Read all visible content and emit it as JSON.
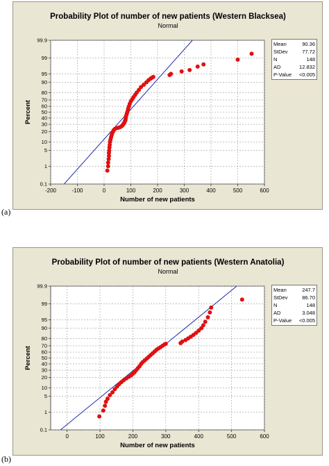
{
  "chart_data": [
    {
      "type": "scatter",
      "title": "Probability Plot of number of new patients (Western Blacksea)",
      "subtitle": "Normal",
      "xlabel": "Number of new patients",
      "ylabel": "Percent",
      "panel_label": "(a)",
      "xlim": [
        -200,
        600
      ],
      "x_ticks": [
        "-200",
        "-100",
        "0",
        "100",
        "200",
        "300",
        "400",
        "500",
        "600"
      ],
      "y_ticks": [
        "0.1",
        "1",
        "5",
        "10",
        "20",
        "30",
        "40",
        "50",
        "60",
        "70",
        "80",
        "90",
        "95",
        "99",
        "99.9"
      ],
      "grid": true,
      "stats": [
        {
          "label": "Mean",
          "value": "90.36"
        },
        {
          "label": "StDev",
          "value": "77.72"
        },
        {
          "label": "N",
          "value": "148"
        },
        {
          "label": "AD",
          "value": "12.832"
        },
        {
          "label": "P-Value",
          "value": "<0.005"
        }
      ],
      "fit_line": {
        "mean": 90.36,
        "sd": 77.72
      },
      "points": [
        [
          12,
          0.6
        ],
        [
          15,
          1.0
        ],
        [
          15,
          1.5
        ],
        [
          17,
          2.2
        ],
        [
          18,
          3.0
        ],
        [
          18,
          4.0
        ],
        [
          19,
          5.0
        ],
        [
          20,
          6.5
        ],
        [
          21,
          8.0
        ],
        [
          22,
          10.0
        ],
        [
          24,
          12.0
        ],
        [
          26,
          14.0
        ],
        [
          28,
          16.0
        ],
        [
          30,
          18.0
        ],
        [
          33,
          20.0
        ],
        [
          36,
          22.0
        ],
        [
          40,
          23.5
        ],
        [
          45,
          24.5
        ],
        [
          52,
          25.0
        ],
        [
          60,
          26.0
        ],
        [
          66,
          27.5
        ],
        [
          70,
          29.0
        ],
        [
          73,
          31.0
        ],
        [
          76,
          33.0
        ],
        [
          78,
          35.0
        ],
        [
          80,
          37.0
        ],
        [
          81,
          40.0
        ],
        [
          82,
          43.0
        ],
        [
          84,
          46.0
        ],
        [
          86,
          49.0
        ],
        [
          88,
          52.0
        ],
        [
          90,
          56.0
        ],
        [
          93,
          60.0
        ],
        [
          96,
          64.0
        ],
        [
          100,
          68.0
        ],
        [
          105,
          71.0
        ],
        [
          110,
          74.0
        ],
        [
          116,
          77.0
        ],
        [
          122,
          80.0
        ],
        [
          130,
          83.0
        ],
        [
          138,
          86.0
        ],
        [
          148,
          88.0
        ],
        [
          158,
          90.0
        ],
        [
          166,
          91.5
        ],
        [
          174,
          92.5
        ],
        [
          178,
          93.0
        ],
        [
          184,
          93.5
        ],
        [
          245,
          94.5
        ],
        [
          250,
          95.0
        ],
        [
          290,
          96.0
        ],
        [
          320,
          96.5
        ],
        [
          350,
          97.5
        ],
        [
          372,
          98.0
        ],
        [
          500,
          98.8
        ],
        [
          552,
          99.4
        ]
      ]
    },
    {
      "type": "scatter",
      "title": "Probability Plot of number of new patients (Western Anatolia)",
      "subtitle": "Normal",
      "xlabel": "Number of new patients",
      "ylabel": "Percent",
      "panel_label": "(b)",
      "xlim": [
        -50,
        600
      ],
      "x_ticks": [
        "0",
        "100",
        "200",
        "300",
        "400",
        "500",
        "600"
      ],
      "y_ticks": [
        "0.1",
        "1",
        "5",
        "10",
        "20",
        "30",
        "40",
        "50",
        "60",
        "70",
        "80",
        "90",
        "95",
        "99",
        "99.9"
      ],
      "grid": true,
      "stats": [
        {
          "label": "Mean",
          "value": "247.7"
        },
        {
          "label": "StDev",
          "value": "86.70"
        },
        {
          "label": "N",
          "value": "148"
        },
        {
          "label": "AD",
          "value": "3.048"
        },
        {
          "label": "P-Value",
          "value": "<0.005"
        }
      ],
      "fit_line": {
        "mean": 247.7,
        "sd": 86.7
      },
      "points": [
        [
          98,
          0.6
        ],
        [
          110,
          1.2
        ],
        [
          115,
          2.0
        ],
        [
          118,
          3.0
        ],
        [
          123,
          4.0
        ],
        [
          130,
          5.5
        ],
        [
          138,
          7.0
        ],
        [
          145,
          9.0
        ],
        [
          152,
          11.0
        ],
        [
          158,
          13.0
        ],
        [
          165,
          15.0
        ],
        [
          172,
          17.0
        ],
        [
          180,
          19.0
        ],
        [
          188,
          21.0
        ],
        [
          195,
          23.0
        ],
        [
          200,
          25.0
        ],
        [
          205,
          27.0
        ],
        [
          210,
          30.0
        ],
        [
          215,
          33.0
        ],
        [
          220,
          36.0
        ],
        [
          225,
          40.0
        ],
        [
          230,
          43.0
        ],
        [
          236,
          46.0
        ],
        [
          242,
          49.0
        ],
        [
          248,
          52.0
        ],
        [
          254,
          55.0
        ],
        [
          260,
          58.0
        ],
        [
          266,
          61.0
        ],
        [
          272,
          64.0
        ],
        [
          278,
          66.0
        ],
        [
          284,
          68.0
        ],
        [
          290,
          70.0
        ],
        [
          296,
          72.0
        ],
        [
          300,
          73.0
        ],
        [
          345,
          74.0
        ],
        [
          350,
          76.0
        ],
        [
          360,
          78.0
        ],
        [
          368,
          80.0
        ],
        [
          376,
          82.0
        ],
        [
          384,
          84.0
        ],
        [
          392,
          86.0
        ],
        [
          400,
          88.0
        ],
        [
          408,
          90.0
        ],
        [
          414,
          92.0
        ],
        [
          420,
          94.0
        ],
        [
          428,
          96.0
        ],
        [
          434,
          97.5
        ],
        [
          438,
          98.5
        ],
        [
          532,
          99.4
        ]
      ]
    }
  ]
}
